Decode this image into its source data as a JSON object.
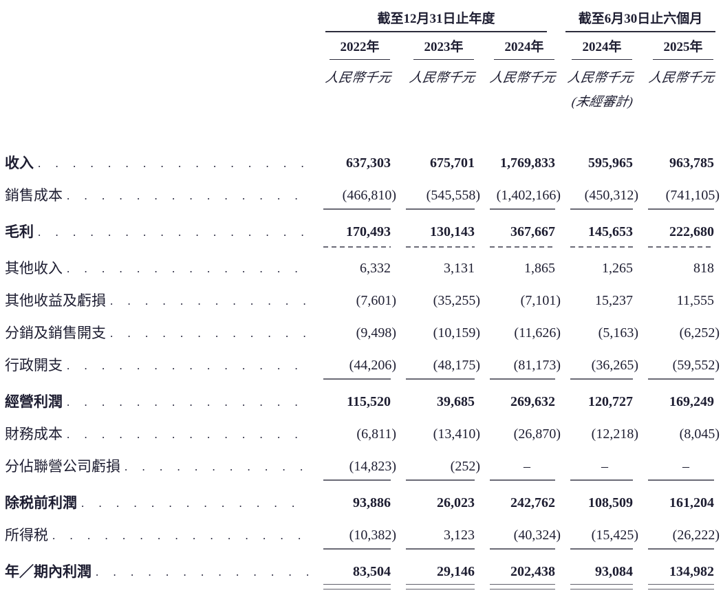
{
  "table": {
    "header": {
      "group1": {
        "label": "截至12月31日止年度",
        "years": [
          "2022年",
          "2023年",
          "2024年"
        ]
      },
      "group2": {
        "label": "截至6月30日止六個月",
        "years": [
          "2024年",
          "2025年"
        ]
      },
      "unit_label": "人民幣千元",
      "unaudited_note": "(未經審計)"
    },
    "rows": [
      {
        "label": "收入",
        "bold": true,
        "rule": "none",
        "values": [
          "637,303",
          "675,701",
          "1,769,833",
          "595,965",
          "963,785"
        ]
      },
      {
        "label": "銷售成本",
        "bold": false,
        "rule": "single",
        "values": [
          "(466,810)",
          "(545,558)",
          "(1,402,166)",
          "(450,312)",
          "(741,105)"
        ]
      },
      {
        "label": "毛利",
        "bold": true,
        "rule": "dashed",
        "values": [
          "170,493",
          "130,143",
          "367,667",
          "145,653",
          "222,680"
        ]
      },
      {
        "label": "其他收入",
        "bold": false,
        "rule": "none",
        "values": [
          "6,332",
          "3,131",
          "1,865",
          "1,265",
          "818"
        ]
      },
      {
        "label": "其他收益及虧損",
        "bold": false,
        "rule": "none",
        "values": [
          "(7,601)",
          "(35,255)",
          "(7,101)",
          "15,237",
          "11,555"
        ]
      },
      {
        "label": "分銷及銷售開支",
        "bold": false,
        "rule": "none",
        "values": [
          "(9,498)",
          "(10,159)",
          "(11,626)",
          "(5,163)",
          "(6,252)"
        ]
      },
      {
        "label": "行政開支",
        "bold": false,
        "rule": "single",
        "values": [
          "(44,206)",
          "(48,175)",
          "(81,173)",
          "(36,265)",
          "(59,552)"
        ]
      },
      {
        "label": "經營利潤",
        "bold": true,
        "rule": "none",
        "values": [
          "115,520",
          "39,685",
          "269,632",
          "120,727",
          "169,249"
        ]
      },
      {
        "label": "財務成本",
        "bold": false,
        "rule": "none",
        "values": [
          "(6,811)",
          "(13,410)",
          "(26,870)",
          "(12,218)",
          "(8,045)"
        ]
      },
      {
        "label": "分佔聯營公司虧損",
        "bold": false,
        "rule": "single",
        "values": [
          "(14,823)",
          "(252)",
          "–",
          "–",
          "–"
        ]
      },
      {
        "label": "除税前利潤",
        "bold": true,
        "rule": "none",
        "values": [
          "93,886",
          "26,023",
          "242,762",
          "108,509",
          "161,204"
        ]
      },
      {
        "label": "所得税",
        "bold": false,
        "rule": "single",
        "values": [
          "(10,382)",
          "3,123",
          "(40,324)",
          "(15,425)",
          "(26,222)"
        ]
      },
      {
        "label": "年／期內利潤",
        "bold": true,
        "rule": "double",
        "values": [
          "83,504",
          "29,146",
          "202,438",
          "93,084",
          "134,982"
        ]
      }
    ]
  },
  "colors": {
    "ink": "#1d1d31",
    "rule_gray": "#6a6a75",
    "rule_dark": "#2c2c3c",
    "background": "#ffffff"
  }
}
